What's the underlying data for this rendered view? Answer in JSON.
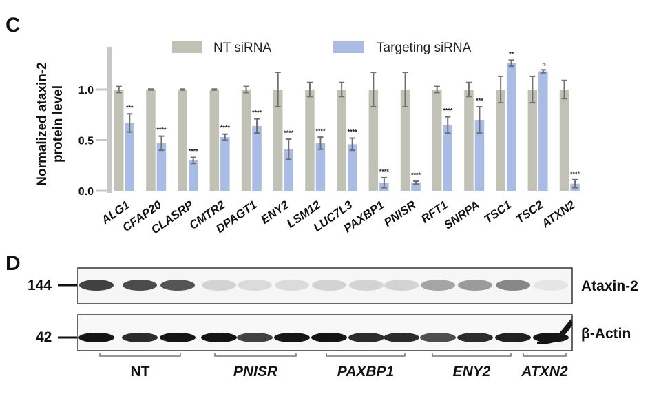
{
  "panel_c_letter": "C",
  "panel_d_letter": "D",
  "colors": {
    "nt_bar": "#c2c1b5",
    "targeting_bar": "#a9bce6",
    "error_bar": "#6f6f6f",
    "axis": "#c8c8c8",
    "band": "#111111"
  },
  "chart_data": {
    "type": "bar",
    "title": "",
    "xlabel": "",
    "ylabel": "Normalized ataxin-2 protein level",
    "ylabel_lines": [
      "Normalized ataxin-2",
      "protein level"
    ],
    "ylim": [
      0,
      1.45
    ],
    "yticks": [
      "0.0",
      "0.5",
      "1.0"
    ],
    "ytick_values": [
      0.0,
      0.5,
      1.0
    ],
    "grid": false,
    "legend_position": "top",
    "categories": [
      "ALG1",
      "CFAP20",
      "CLASRP",
      "CMTR2",
      "DPAGT1",
      "ENY2",
      "LSM12",
      "LUC7L3",
      "PAXBP1",
      "PNISR",
      "RFT1",
      "SNRPA",
      "TSC1",
      "TSC2",
      "ATXN2"
    ],
    "series": [
      {
        "name": "NT siRNA",
        "values": [
          1.0,
          1.0,
          1.0,
          1.0,
          1.0,
          1.0,
          1.0,
          1.0,
          1.0,
          1.0,
          1.0,
          1.0,
          1.0,
          1.0,
          1.0
        ],
        "errors": [
          0.03,
          0.005,
          0.005,
          0.005,
          0.03,
          0.17,
          0.07,
          0.07,
          0.17,
          0.17,
          0.03,
          0.07,
          0.13,
          0.13,
          0.09
        ]
      },
      {
        "name": "Targeting siRNA",
        "values": [
          0.67,
          0.47,
          0.3,
          0.53,
          0.64,
          0.41,
          0.47,
          0.46,
          0.08,
          0.08,
          0.65,
          0.7,
          1.26,
          1.18,
          0.07
        ],
        "errors": [
          0.09,
          0.07,
          0.03,
          0.03,
          0.07,
          0.1,
          0.06,
          0.06,
          0.05,
          0.015,
          0.08,
          0.13,
          0.03,
          0.015,
          0.04
        ]
      }
    ],
    "significance": [
      "***",
      "****",
      "****",
      "****",
      "****",
      "****",
      "****",
      "****",
      "****",
      "****",
      "****",
      "***",
      "**",
      "ns",
      "****"
    ]
  },
  "blot": {
    "markers": [
      "144",
      "42"
    ],
    "bands": [
      "Ataxin-2",
      "β-Actin"
    ],
    "lane_groups": [
      {
        "label": "NT",
        "italic": false
      },
      {
        "label": "PNISR",
        "italic": true
      },
      {
        "label": "PAXBP1",
        "italic": true
      },
      {
        "label": "ENY2",
        "italic": true
      },
      {
        "label": "ATXN2",
        "italic": true
      }
    ],
    "ataxin_intensity": [
      0.85,
      0.8,
      0.75,
      0.12,
      0.08,
      0.08,
      0.12,
      0.12,
      0.12,
      0.35,
      0.4,
      0.5,
      0.03
    ],
    "actin_intensity": [
      0.95,
      0.85,
      0.95,
      0.95,
      0.75,
      0.95,
      0.95,
      0.85,
      0.85,
      0.7,
      0.85,
      0.9,
      0.95
    ]
  }
}
